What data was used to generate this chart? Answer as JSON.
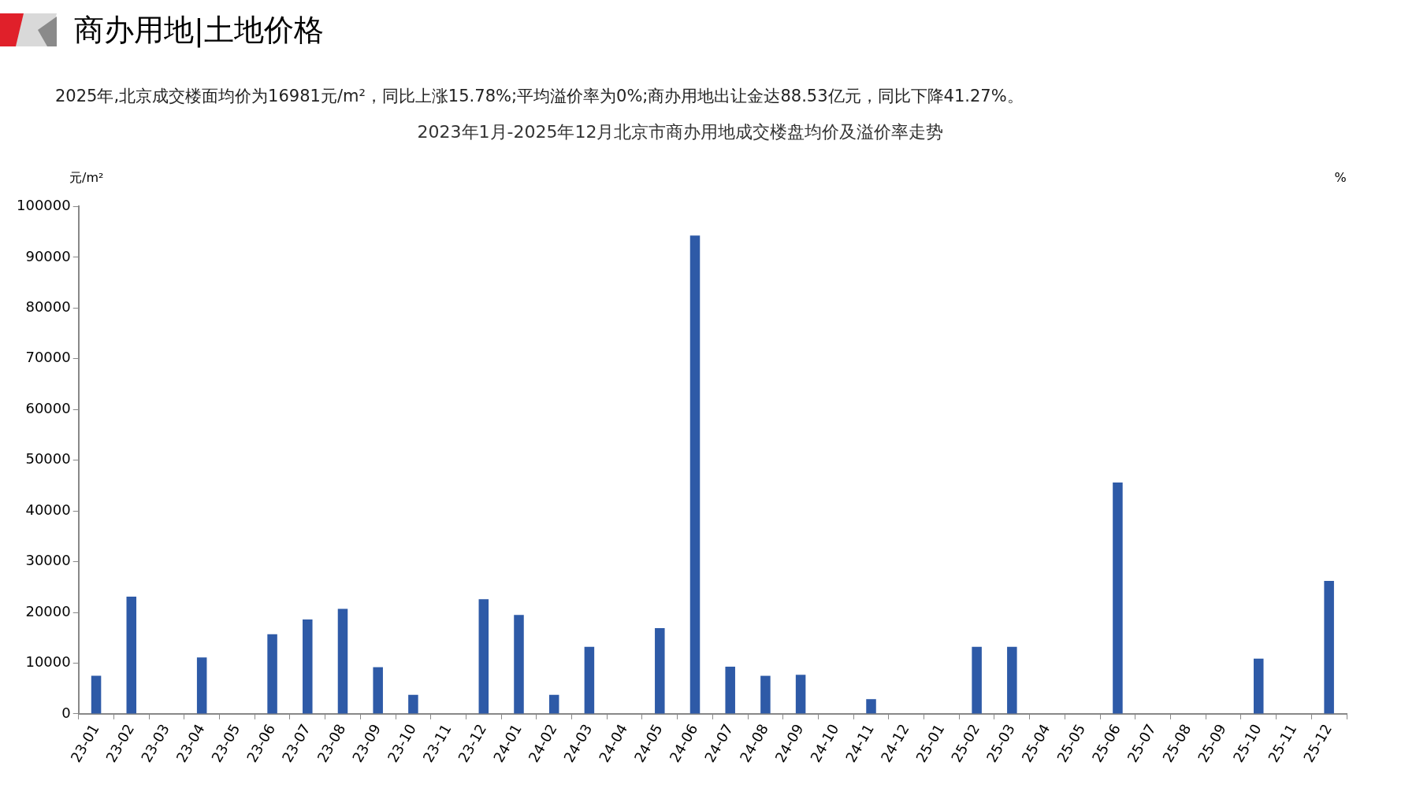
{
  "chart_data": {
    "type": "bar",
    "title": "2023年1月-2025年12月北京市商办用地成交楼盘均价及溢价率走势",
    "subtitle": "2025年,北京成交楼面均价为16981元/m²，同比上涨15.78%;平均溢价率为0%;商办用地出让金达88.53亿元，同比下降41.27%。",
    "annotations": [
      "商办用地|土地价格"
    ],
    "ylabel": "元/m²",
    "y2label": "%",
    "categories": [
      "23-01",
      "23-02",
      "23-03",
      "23-04",
      "23-05",
      "23-06",
      "23-07",
      "23-08",
      "23-09",
      "23-10",
      "23-11",
      "23-12",
      "24-01",
      "24-02",
      "24-03",
      "24-04",
      "24-05",
      "24-06",
      "24-07",
      "24-08",
      "24-09",
      "24-10",
      "24-11",
      "24-12",
      "25-01",
      "25-02",
      "25-03",
      "25-04",
      "25-05",
      "25-06",
      "25-07",
      "25-08",
      "25-09",
      "25-10",
      "25-11",
      "25-12"
    ],
    "series": [
      {
        "color": "#2e5aa7",
        "values": [
          7500,
          23100,
          null,
          11100,
          null,
          15700,
          18600,
          20700,
          9200,
          3750,
          null,
          22600,
          19500,
          3750,
          13200,
          null,
          16900,
          94300,
          9300,
          7500,
          7700,
          null,
          2900,
          null,
          null,
          13200,
          13200,
          null,
          null,
          45600,
          null,
          null,
          null,
          10900,
          null,
          26200
        ]
      }
    ],
    "ylim": [
      0,
      100000
    ],
    "yticks": [
      0,
      10000,
      20000,
      30000,
      40000,
      50000,
      60000,
      70000,
      80000,
      90000,
      100000
    ],
    "grid": false,
    "legend": false
  }
}
